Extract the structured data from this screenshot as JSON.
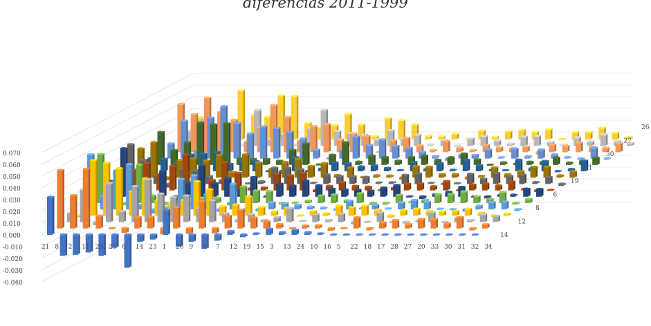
{
  "chart_data": {
    "type": "bar",
    "subtype": "3d-column",
    "title": "diferencias 2011-1999",
    "xlabel": "",
    "ylabel": "",
    "ylim": [
      -0.04,
      0.07
    ],
    "yticks": [
      "0.070",
      "0.060",
      "0.050",
      "0.040",
      "0.030",
      "0.020",
      "0.010",
      "0.000",
      "-0.010",
      "-0.020",
      "-0.030",
      "-0.040"
    ],
    "grid": true,
    "categories": [
      "21",
      "8",
      "2",
      "11",
      "29",
      "25",
      "6",
      "14",
      "23",
      "1",
      "26",
      "9",
      "4",
      "7",
      "12",
      "19",
      "15",
      "3",
      "13",
      "24",
      "10",
      "16",
      "5",
      "22",
      "18",
      "17",
      "28",
      "27",
      "20",
      "33",
      "30",
      "31",
      "32",
      "34"
    ],
    "depth_series": [
      "26",
      "27",
      "30",
      "1",
      "19",
      "6",
      "8",
      "12",
      "14"
    ],
    "palette": [
      "#4472c4",
      "#ed7d31",
      "#a5a5a5",
      "#ffc000",
      "#5b9bd5",
      "#70ad47",
      "#264478",
      "#9e480e",
      "#636363",
      "#997300",
      "#255e91",
      "#43682b",
      "#698ed0",
      "#f1975a",
      "#b7b7b7",
      "#ffcd33"
    ],
    "front_values": [
      0.032,
      -0.018,
      -0.017,
      -0.015,
      -0.018,
      -0.011,
      -0.028,
      -0.006,
      -0.004,
      0.021,
      -0.01,
      -0.006,
      -0.012,
      -0.005,
      0.003,
      -0.002,
      0.001,
      0.005,
      0.002,
      0.004,
      0.002,
      0.001,
      0.0,
      0.0,
      0.0,
      0.0,
      0.0,
      0.0,
      0.0,
      0.0,
      0.0,
      0.0,
      0.0,
      0.0
    ]
  }
}
